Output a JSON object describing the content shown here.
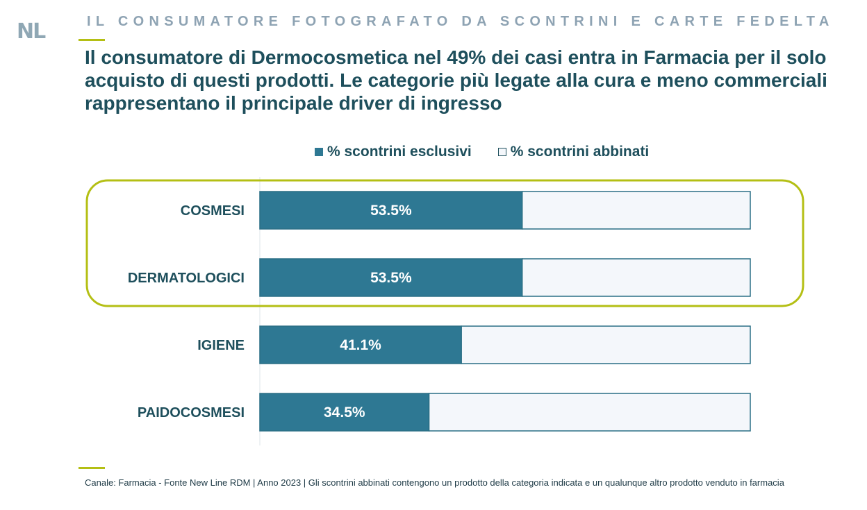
{
  "header": {
    "logo": "NL",
    "kicker": "IL CONSUMATORE FOTOGRAFATO DA SCONTRINI E CARTE FEDELTA",
    "headline": "Il consumatore di Dermocosmetica nel 49% dei casi entra in Farmacia per il solo acquisto di questi prodotti. Le categorie più legate alla cura e meno commerciali rappresentano il principale driver di ingresso"
  },
  "chart_data": {
    "type": "bar",
    "orientation": "horizontal",
    "stacked": true,
    "categories": [
      "COSMESI",
      "DERMATOLOGICI",
      "IGIENE",
      "PAIDOCOSMESI"
    ],
    "series": [
      {
        "name": "% scontrini esclusivi",
        "values": [
          53.5,
          53.5,
          41.1,
          34.5
        ],
        "color": "#2e7893"
      },
      {
        "name": "% scontrini abbinati",
        "values": [
          46.5,
          46.5,
          58.9,
          65.5
        ],
        "color": "#f4f7fb"
      }
    ],
    "value_labels": [
      "53.5%",
      "53.5%",
      "41.1%",
      "34.5%"
    ],
    "xlim": [
      0,
      100
    ],
    "grid": false,
    "legend_position": "top",
    "highlighted_categories": [
      "COSMESI",
      "DERMATOLOGICI"
    ],
    "highlight_color": "#b4bf14"
  },
  "footer": {
    "note": "Canale: Farmacia - Fonte New Line RDM | Anno 2023 | Gli scontrini abbinati contengono un prodotto della categoria indicata e un qualunque altro prodotto venduto in farmacia"
  }
}
